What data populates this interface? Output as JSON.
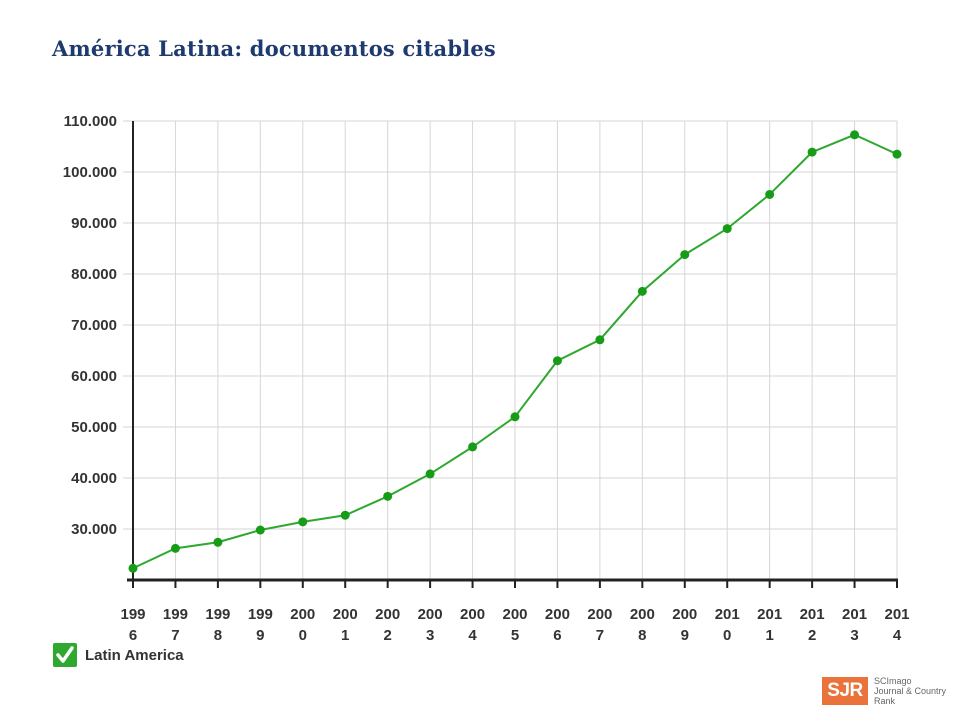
{
  "title": "América Latina: documentos citables",
  "legend": {
    "label": "Latin America",
    "color": "#2fa82f",
    "checked": true
  },
  "logo": {
    "mark": "SJR",
    "line1": "SCImago",
    "line2": "Journal & Country",
    "line3": "Rank",
    "color": "#e9733a"
  },
  "chart_data": {
    "type": "line",
    "title": "",
    "xlabel": "",
    "ylabel": "",
    "ylim": [
      20000,
      110000
    ],
    "yticks": [
      30000,
      40000,
      50000,
      60000,
      70000,
      80000,
      90000,
      100000,
      110000
    ],
    "ytick_labels": [
      "30.000",
      "40.000",
      "50.000",
      "60.000",
      "70.000",
      "80.000",
      "90.000",
      "100.000",
      "110.000"
    ],
    "x": [
      1996,
      1997,
      1998,
      1999,
      2000,
      2001,
      2002,
      2003,
      2004,
      2005,
      2006,
      2007,
      2008,
      2009,
      2010,
      2011,
      2012,
      2013,
      2014
    ],
    "x_tick_labels": [
      [
        "199",
        "6"
      ],
      [
        "199",
        "7"
      ],
      [
        "199",
        "8"
      ],
      [
        "199",
        "9"
      ],
      [
        "200",
        "0"
      ],
      [
        "200",
        "1"
      ],
      [
        "200",
        "2"
      ],
      [
        "200",
        "3"
      ],
      [
        "200",
        "4"
      ],
      [
        "200",
        "5"
      ],
      [
        "200",
        "6"
      ],
      [
        "200",
        "7"
      ],
      [
        "200",
        "8"
      ],
      [
        "200",
        "9"
      ],
      [
        "201",
        "0"
      ],
      [
        "201",
        "1"
      ],
      [
        "201",
        "2"
      ],
      [
        "201",
        "3"
      ],
      [
        "201",
        "4"
      ]
    ],
    "series": [
      {
        "name": "Latin America",
        "color": "#2fa82f",
        "values": [
          22300,
          26200,
          27400,
          29800,
          31400,
          32700,
          36400,
          40800,
          46100,
          52000,
          63000,
          67100,
          76600,
          83800,
          88900,
          95600,
          103900,
          107300,
          103500
        ]
      }
    ],
    "grid": true
  }
}
